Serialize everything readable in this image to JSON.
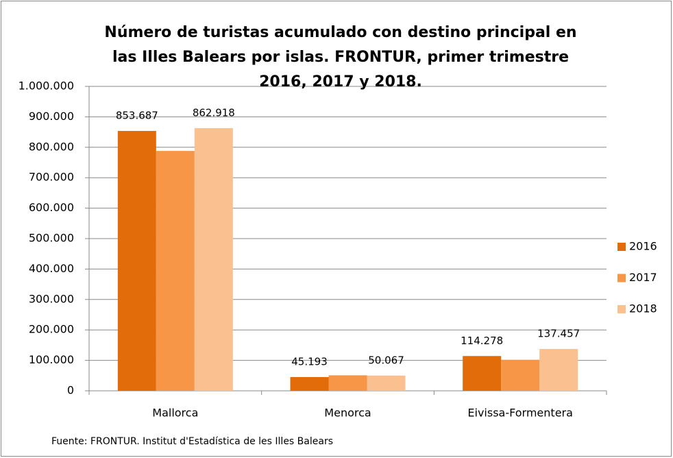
{
  "chart_data": {
    "type": "bar",
    "title": [
      "Número de turistas acumulado con destino principal en",
      "las Illes Balears por islas. FRONTUR,  primer trimestre",
      "2016, 2017 y 2018."
    ],
    "categories": [
      "Mallorca",
      "Menorca",
      "Eivissa-Formentera"
    ],
    "series": [
      {
        "name": "2016",
        "color": "#e36c0a",
        "values": [
          853687,
          45193,
          114278
        ],
        "value_labels": [
          "853.687",
          "45.193",
          "114.278"
        ]
      },
      {
        "name": "2017",
        "color": "#f79646",
        "values": [
          788000,
          51000,
          102000
        ]
      },
      {
        "name": "2018",
        "color": "#fac090",
        "values": [
          862918,
          50067,
          137457
        ],
        "value_labels": [
          "862.918",
          "50.067",
          "137.457"
        ]
      }
    ],
    "ylim": [
      0,
      1000000
    ],
    "yticks": [
      0,
      {
        "value": 100000,
        "label": "100.000"
      },
      {
        "value": 200000,
        "label": "200.000"
      },
      {
        "value": 300000,
        "label": "300.000"
      },
      {
        "value": 400000,
        "label": "400.000"
      },
      {
        "value": 500000,
        "label": "500.000"
      },
      {
        "value": 600000,
        "label": "600.000"
      },
      {
        "value": 700000,
        "label": "700.000"
      },
      {
        "value": 800000,
        "label": "800.000"
      },
      {
        "value": 900000,
        "label": "900.000"
      },
      {
        "value": 1000000,
        "label": "1.000.000"
      }
    ],
    "grid": true,
    "legend": "right",
    "source": "Fuente: FRONTUR. Institut d'Estadística de les Illes Balears"
  }
}
